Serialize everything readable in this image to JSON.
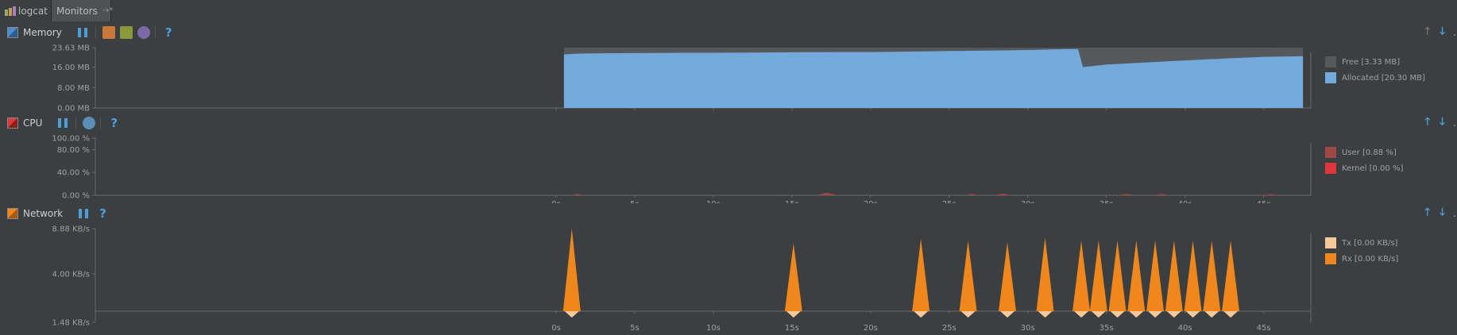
{
  "tabs": [
    {
      "label": "logcat"
    },
    {
      "label": "Monitors",
      "pin": "⇢*"
    }
  ],
  "x_ticks": [
    "0s",
    "5s",
    "10s",
    "15s",
    "20s",
    "25s",
    "30s",
    "35s",
    "40s",
    "45s"
  ],
  "memory": {
    "title": "Memory",
    "color": "#4a8fd1",
    "y_ticks": [
      "23.63 MB",
      "16.00 MB",
      "8.00 MB",
      "0.00 MB"
    ],
    "legend": [
      {
        "label": "Free [3.33 MB]",
        "color": "#55595c"
      },
      {
        "label": "Allocated [20.30 MB]",
        "color": "#74a9db"
      }
    ]
  },
  "cpu": {
    "title": "CPU",
    "color": "#d93b3b",
    "y_ticks": [
      "100.00 %",
      "80.00 %",
      "40.00 %",
      "0.00 %"
    ],
    "legend": [
      {
        "label": "User [0.88 %]",
        "color": "#a04747"
      },
      {
        "label": "Kernel [0.00 %]",
        "color": "#e0353a"
      }
    ]
  },
  "network": {
    "title": "Network",
    "color": "#f0871c",
    "y_ticks": [
      "8.88 KB/s",
      "4.00 KB/s",
      "1.48 KB/s"
    ],
    "legend": [
      {
        "label": "Tx [0.00 KB/s]",
        "color": "#f6c99a"
      },
      {
        "label": "Rx [0.00 KB/s]",
        "color": "#f0871c"
      }
    ]
  },
  "chart_data": [
    {
      "type": "area",
      "xlabel": "",
      "ylabel": "",
      "xlim": [
        0,
        48
      ],
      "ylim": [
        0,
        23.63
      ],
      "x": [
        0.5,
        1.5,
        3,
        5,
        8,
        10,
        12,
        15,
        18,
        20,
        23,
        25,
        28,
        30,
        32,
        33.2,
        33.5,
        35,
        38,
        40,
        43,
        45,
        47.5
      ],
      "series": [
        {
          "name": "Allocated",
          "values": [
            21.0,
            21.3,
            21.4,
            21.5,
            21.6,
            21.6,
            21.7,
            21.8,
            21.9,
            21.9,
            22.1,
            22.3,
            22.5,
            22.7,
            23.0,
            23.1,
            16.0,
            17.0,
            18.0,
            18.6,
            19.5,
            20.0,
            20.3
          ]
        },
        {
          "name": "Free",
          "values": [
            2.6,
            2.3,
            2.2,
            2.1,
            2.0,
            2.0,
            1.9,
            1.8,
            1.7,
            1.7,
            1.5,
            1.3,
            1.1,
            0.9,
            0.6,
            0.5,
            7.6,
            6.6,
            5.6,
            5.0,
            4.1,
            3.6,
            3.33
          ]
        }
      ]
    },
    {
      "type": "area",
      "xlabel": "",
      "ylabel": "",
      "xlim": [
        0,
        48
      ],
      "ylim": [
        0,
        100
      ],
      "x": [
        1.0,
        1.3,
        1.8,
        16.6,
        17.2,
        17.9,
        25.9,
        26.4,
        27.0,
        27.8,
        28.4,
        29.0,
        35.7,
        36.3,
        36.9,
        37.9,
        38.5,
        39.1,
        45.0,
        45.5,
        46.0
      ],
      "series": [
        {
          "name": "User",
          "values": [
            0,
            2.5,
            0,
            0,
            4.5,
            0,
            0,
            2.0,
            0,
            0,
            3.0,
            0,
            0,
            2.5,
            0,
            0,
            2.0,
            0,
            0,
            2.0,
            0
          ]
        }
      ]
    },
    {
      "type": "area",
      "xlabel": "",
      "ylabel": "",
      "xlim": [
        0,
        48
      ],
      "ylim": [
        -1.48,
        8.88
      ],
      "x": [
        1.0,
        15.1,
        23.2,
        26.2,
        28.7,
        31.1,
        33.4,
        34.5,
        35.7,
        36.9,
        38.1,
        39.3,
        40.5,
        41.7,
        42.9
      ],
      "series": [
        {
          "name": "Rx",
          "values": [
            8.88,
            7.3,
            7.8,
            7.6,
            7.4,
            7.9,
            7.6,
            7.6,
            7.6,
            7.6,
            7.6,
            7.6,
            7.6,
            7.6,
            7.6
          ]
        },
        {
          "name": "Tx",
          "values": [
            -0.9,
            -0.9,
            -0.9,
            -0.9,
            -0.9,
            -0.9,
            -0.9,
            -0.9,
            -0.9,
            -0.9,
            -0.9,
            -0.9,
            -0.9,
            -0.9,
            -0.9
          ]
        }
      ]
    }
  ]
}
